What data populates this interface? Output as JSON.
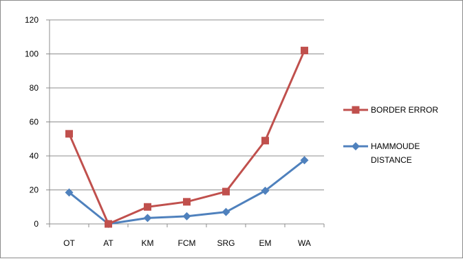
{
  "chart_data": {
    "type": "line",
    "categories": [
      "OT",
      "AT",
      "KM",
      "FCM",
      "SRG",
      "EM",
      "WA"
    ],
    "series": [
      {
        "name": "BORDER ERROR",
        "color": "#c0504d",
        "marker": "square",
        "values": [
          53,
          0,
          10,
          13,
          19,
          49,
          102
        ]
      },
      {
        "name": "HAMMOUDE DISTANCE",
        "color": "#4f81bd",
        "marker": "diamond",
        "values": [
          18.5,
          0,
          3.5,
          4.5,
          7,
          19.5,
          37.5
        ]
      }
    ],
    "ylim": [
      0,
      120
    ],
    "yticks": [
      0,
      20,
      40,
      60,
      80,
      100,
      120
    ],
    "grid": true,
    "legend": "right",
    "title": "",
    "xlabel": "",
    "ylabel": ""
  }
}
